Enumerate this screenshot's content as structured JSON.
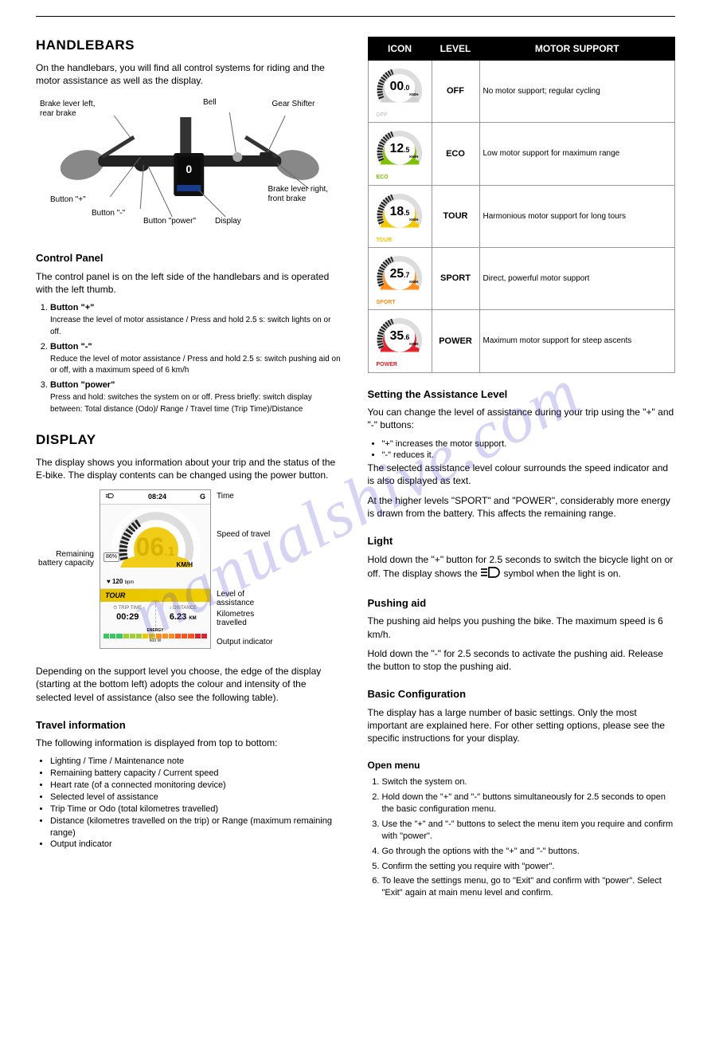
{
  "watermark": "manualshive.com",
  "left": {
    "heading": "HANDLEBARS",
    "intro": "On the handlebars, you will find all control systems for riding and the motor assistance as well as the display.",
    "labels": {
      "brake_r_front": "Brake lever right, front brake",
      "gear_shifter": "Gear Shifter",
      "bell": "Bell",
      "brake_l_rear": "Brake lever left, rear brake",
      "minus": "Button \"-\"",
      "plus": "Button \"+\"",
      "power": "Button \"power\"",
      "display": "Display"
    },
    "control_head": "Control Panel",
    "control_p1": "The control panel is on the left side of the handlebars and is operated with the left thumb.",
    "list": [
      {
        "t": "Button \"+\"",
        "d": "Increase the level of motor assistance / Press and hold 2.5 s: switch lights on or off."
      },
      {
        "t": "Button \"-\"",
        "d": "Reduce the level of motor assistance / Press and hold 2.5 s: switch pushing aid on or off, with a maximum speed of 6 km/h"
      },
      {
        "t": "Button \"power\"",
        "d": "Press and hold: switches the system on or off. Press briefly: switch display between: Total distance (Odo)/ Range / Travel time (Trip Time)/Distance"
      }
    ],
    "disp_head": "DISPLAY",
    "disp_p1": "The display shows you information about your trip and the status of the E-bike. The display contents can be changed using the power button.",
    "disp": {
      "light_icon": "ID",
      "time": "08:24",
      "g": "G",
      "speed": "06",
      "speed_dec": ".1",
      "kmh": "KM/H",
      "pct": "86%",
      "bpm": "120",
      "bpm_lbl": "bpm",
      "mode": "TOUR",
      "trip_label": "TRIP TIME",
      "trip_val": "00:29",
      "dist_label": "DISTANCE",
      "dist_val": "6.23",
      "dist_unit": "KM",
      "energy_label": "ENERGY",
      "energy_wh": "600 W"
    },
    "disp_captions": {
      "time": "Time",
      "battery": "Remaining battery capacity",
      "speed": "Speed of travel",
      "assist": "Level of assistance",
      "km": "Kilometres travelled",
      "output": "Output indicator"
    },
    "disp_p2": "Depending on the support level you choose, the edge of the display (starting at the bottom left) adopts the colour and intensity of the selected level of assistance (also see the following table).",
    "info_head": "Travel information",
    "info_p": "The following information is displayed from top to bottom:",
    "info_list": [
      "Lighting / Time / Maintenance note",
      "Remaining battery capacity / Current speed",
      "Heart rate (of a connected monitoring device)",
      "Selected level of assistance",
      "Trip Time or Odo (total kilometres travelled)",
      "Distance (kilometres travelled on the trip) or Range (maximum remaining range)",
      "Output indicator"
    ]
  },
  "right": {
    "table_head": {
      "icon": "ICON",
      "level": "LEVEL",
      "support": "MOTOR SUPPORT"
    },
    "rows": [
      {
        "val": "00",
        "dec": ".0",
        "label": "OFF",
        "color": "#d0d0d0",
        "level": "OFF",
        "support": "No motor support; regular cycling"
      },
      {
        "val": "12",
        "dec": ".5",
        "label": "ECO",
        "color": "#7cc000",
        "level": "ECO",
        "support": "Low motor support for maximum range"
      },
      {
        "val": "18",
        "dec": ".5",
        "label": "TOUR",
        "color": "#f0c800",
        "level": "TOUR",
        "support": "Harmonious motor support for long tours"
      },
      {
        "val": "25",
        "dec": ".7",
        "label": "SPORT",
        "color": "#ff8c1a",
        "level": "SPORT",
        "support": "Direct, powerful motor support"
      },
      {
        "val": "35",
        "dec": ".6",
        "label": "POWER",
        "color": "#e0202a",
        "level": "POWER",
        "support": "Maximum motor support for steep ascents"
      }
    ],
    "set_head": "Setting the Assistance Level",
    "set_p1": "You can change the level of assistance during your trip using the \"+\" and \"-\" buttons:",
    "set_b1": "\"+\" increases the motor support.",
    "set_b2": "\"-\" reduces it.",
    "set_p2": "The selected assistance level colour surrounds the speed indicator and is also displayed as text.",
    "set_p3": "At the higher levels \"SPORT\" and \"POWER\", considerably more energy is drawn from the battery. This affects the remaining range.",
    "light_head": "Light",
    "light_p": "Hold down the \"+\" button for 2.5 seconds to switch the bicycle light on or off. The display shows the ",
    "light_p2": " symbol when the light is on.",
    "push_head": "Pushing aid",
    "push_p1": "The pushing aid helps you pushing the bike. The maximum speed is 6 km/h.",
    "push_p2": "Hold down the \"-\" for 2.5 seconds to activate the pushing aid. Release the button to stop the pushing aid.",
    "bc_head": "Basic Configuration",
    "bc_p": "The display has a large number of basic settings. Only the most important are explained here. For other setting options, please see the specific instructions for your display.",
    "menu_head": "Open menu",
    "menu_list": [
      "Switch the system on.",
      "Hold down the \"+\" and \"-\" buttons simultaneously for 2.5 seconds to open the basic configuration menu.",
      "Use the \"+\" and \"-\" buttons to select the menu item you require and confirm with \"power\".",
      "Go through the options with the \"+\" and \"-\" buttons.",
      "Confirm the setting you require with \"power\".",
      "To leave the settings menu, go to \"Exit\" and confirm with \"power\". Select \"Exit\" again at main menu level and confirm."
    ]
  },
  "colors": {
    "energy_grad": [
      "#38c860",
      "#a0d030",
      "#f0c800",
      "#ff8c1a",
      "#ff5020",
      "#e0202a"
    ]
  }
}
